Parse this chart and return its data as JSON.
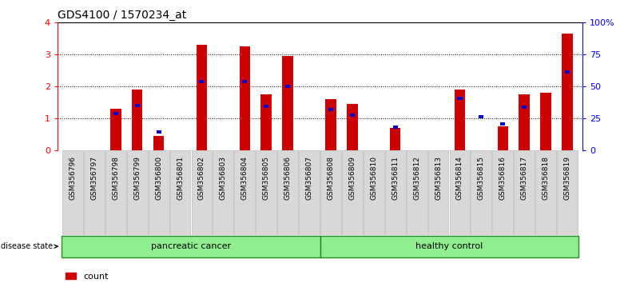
{
  "title": "GDS4100 / 1570234_at",
  "samples": [
    "GSM356796",
    "GSM356797",
    "GSM356798",
    "GSM356799",
    "GSM356800",
    "GSM356801",
    "GSM356802",
    "GSM356803",
    "GSM356804",
    "GSM356805",
    "GSM356806",
    "GSM356807",
    "GSM356808",
    "GSM356809",
    "GSM356810",
    "GSM356811",
    "GSM356812",
    "GSM356813",
    "GSM356814",
    "GSM356815",
    "GSM356816",
    "GSM356817",
    "GSM356818",
    "GSM356819"
  ],
  "count_values": [
    0.0,
    0.0,
    1.3,
    1.9,
    0.45,
    0.0,
    3.3,
    0.0,
    3.25,
    1.75,
    2.95,
    0.0,
    1.6,
    1.45,
    0.0,
    0.7,
    0.0,
    0.0,
    1.9,
    0.0,
    0.75,
    1.75,
    1.8,
    3.65
  ],
  "percentile_values": [
    0.0,
    0.0,
    1.15,
    1.4,
    0.58,
    0.0,
    2.15,
    0.0,
    2.15,
    1.38,
    2.0,
    0.0,
    1.28,
    1.1,
    0.0,
    0.72,
    0.0,
    0.0,
    1.63,
    1.05,
    0.82,
    1.35,
    0.0,
    2.45
  ],
  "groups": [
    {
      "label": "pancreatic cancer",
      "start": 0,
      "end": 11
    },
    {
      "label": "healthy control",
      "start": 12,
      "end": 23
    }
  ],
  "bar_color": "#cc0000",
  "percentile_color": "#0000cc",
  "ylim_left": [
    0,
    4
  ],
  "ylim_right": [
    0,
    100
  ],
  "yticks_left": [
    0,
    1,
    2,
    3,
    4
  ],
  "yticks_right": [
    0,
    25,
    50,
    75,
    100
  ],
  "yticklabels_right": [
    "0",
    "25",
    "50",
    "75",
    "100%"
  ],
  "group_color": "#90ee90",
  "group_border": "#228B22",
  "bar_width": 0.5
}
